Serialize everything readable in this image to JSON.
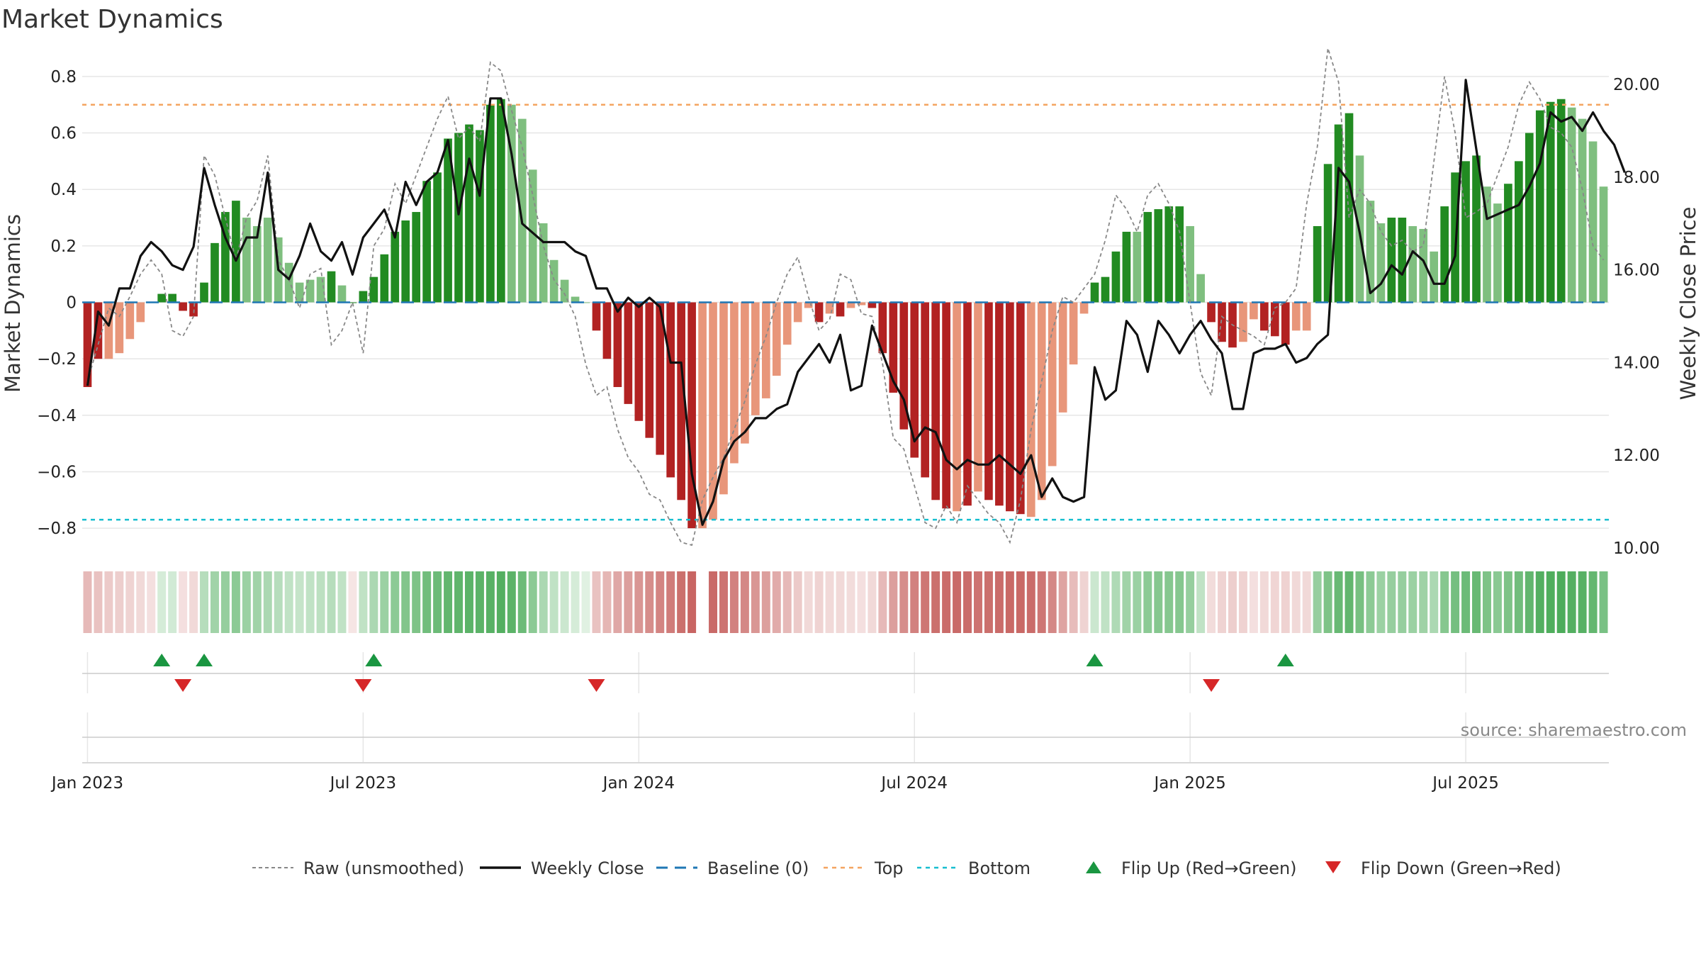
{
  "chart_data": {
    "type": "bar",
    "title": "Market Dynamics",
    "source": "source: sharemaestro.com",
    "ylabel": "Market Dynamics",
    "y2label": "Weekly Close Price",
    "ylim": [
      -0.87,
      0.87
    ],
    "y2lim": [
      10.0,
      20.6
    ],
    "yticks": [
      {
        "v": 0.8,
        "t": "0.8"
      },
      {
        "v": 0.6,
        "t": "0.6"
      },
      {
        "v": 0.4,
        "t": "0.4"
      },
      {
        "v": 0.2,
        "t": "0.2"
      },
      {
        "v": 0,
        "t": "0"
      },
      {
        "v": -0.2,
        "t": "−0.2"
      },
      {
        "v": -0.4,
        "t": "−0.4"
      },
      {
        "v": -0.6,
        "t": "−0.6"
      },
      {
        "v": -0.8,
        "t": "−0.8"
      }
    ],
    "y2ticks": [
      {
        "v": 20,
        "t": "20.00"
      },
      {
        "v": 18,
        "t": "18.00"
      },
      {
        "v": 16,
        "t": "16.00"
      },
      {
        "v": 14,
        "t": "14.00"
      },
      {
        "v": 12,
        "t": "12.00"
      },
      {
        "v": 10,
        "t": "10.00"
      }
    ],
    "xticks": [
      {
        "w": 0.5,
        "t": "Jan 2023"
      },
      {
        "w": 26.5,
        "t": "Jul 2023"
      },
      {
        "w": 52.5,
        "t": "Jan 2024"
      },
      {
        "w": 78.5,
        "t": "Jul 2024"
      },
      {
        "w": 104.5,
        "t": "Jan 2025"
      },
      {
        "w": 130.5,
        "t": "Jul 2025"
      }
    ],
    "top_line": 0.7,
    "bottom_line": -0.77,
    "weeks": 144,
    "bars": [
      -0.3,
      -0.2,
      -0.2,
      -0.18,
      -0.13,
      -0.07,
      0.0,
      0.03,
      0.03,
      -0.03,
      -0.05,
      0.07,
      0.21,
      0.32,
      0.36,
      0.3,
      0.27,
      0.3,
      0.23,
      0.14,
      0.07,
      0.08,
      0.09,
      0.11,
      0.06,
      0.0,
      0.04,
      0.09,
      0.17,
      0.25,
      0.29,
      0.32,
      0.43,
      0.46,
      0.58,
      0.6,
      0.63,
      0.61,
      0.7,
      0.72,
      0.7,
      0.65,
      0.47,
      0.28,
      0.15,
      0.08,
      0.02,
      0.0,
      -0.1,
      -0.2,
      -0.3,
      -0.36,
      -0.42,
      -0.48,
      -0.54,
      -0.62,
      -0.7,
      -0.8,
      -0.8,
      -0.77,
      -0.68,
      -0.57,
      -0.5,
      -0.4,
      -0.34,
      -0.26,
      -0.15,
      -0.07,
      -0.02,
      -0.07,
      -0.04,
      -0.05,
      -0.02,
      -0.01,
      -0.02,
      -0.18,
      -0.32,
      -0.45,
      -0.55,
      -0.62,
      -0.7,
      -0.73,
      -0.74,
      -0.72,
      -0.67,
      -0.7,
      -0.72,
      -0.74,
      -0.75,
      -0.76,
      -0.7,
      -0.58,
      -0.39,
      -0.22,
      -0.04,
      0.07,
      0.09,
      0.18,
      0.25,
      0.25,
      0.32,
      0.33,
      0.34,
      0.34,
      0.27,
      0.1,
      -0.07,
      -0.14,
      -0.16,
      -0.14,
      -0.06,
      -0.1,
      -0.12,
      -0.15,
      -0.1,
      -0.1,
      0.27,
      0.49,
      0.63,
      0.67,
      0.52,
      0.36,
      0.28,
      0.3,
      0.3,
      0.27,
      0.26,
      0.18,
      0.34,
      0.46,
      0.5,
      0.52,
      0.41,
      0.35,
      0.42,
      0.5,
      0.6,
      0.68,
      0.71,
      0.72,
      0.69,
      0.65,
      0.57,
      0.41
    ],
    "bar_colors": {
      "pos_strong": "#228b22",
      "pos_light": "#7fbf7f",
      "neg_strong": "#b22222",
      "neg_light": "#e8967a"
    },
    "bar_shade": [
      "ns",
      "ns",
      "nl",
      "nl",
      "nl",
      "nl",
      "ns",
      "ps",
      "ps",
      "ns",
      "ns",
      "ps",
      "ps",
      "ps",
      "ps",
      "pl",
      "pl",
      "pl",
      "pl",
      "pl",
      "pl",
      "pl",
      "pl",
      "ps",
      "pl",
      "ps",
      "ps",
      "ps",
      "ps",
      "ps",
      "ps",
      "ps",
      "ps",
      "ps",
      "ps",
      "ps",
      "ps",
      "ps",
      "ps",
      "ps",
      "pl",
      "pl",
      "pl",
      "pl",
      "pl",
      "pl",
      "pl",
      "pl",
      "ns",
      "ns",
      "ns",
      "ns",
      "ns",
      "ns",
      "ns",
      "ns",
      "ns",
      "ns",
      "nl",
      "nl",
      "nl",
      "nl",
      "nl",
      "nl",
      "nl",
      "nl",
      "nl",
      "nl",
      "nl",
      "ns",
      "nl",
      "ns",
      "nl",
      "nl",
      "ns",
      "ns",
      "ns",
      "ns",
      "ns",
      "ns",
      "ns",
      "ns",
      "nl",
      "ns",
      "nl",
      "ns",
      "ns",
      "ns",
      "ns",
      "nl",
      "nl",
      "nl",
      "nl",
      "nl",
      "nl",
      "ps",
      "ps",
      "ps",
      "ps",
      "pl",
      "ps",
      "ps",
      "ps",
      "ps",
      "pl",
      "pl",
      "ns",
      "ns",
      "ns",
      "nl",
      "nl",
      "ns",
      "ns",
      "ns",
      "nl",
      "nl",
      "ps",
      "ps",
      "ps",
      "ps",
      "pl",
      "pl",
      "pl",
      "ps",
      "ps",
      "pl",
      "pl",
      "pl",
      "ps",
      "ps",
      "ps",
      "ps",
      "pl",
      "pl",
      "ps",
      "ps",
      "ps",
      "ps",
      "ps",
      "ps",
      "pl",
      "pl",
      "pl",
      "pl"
    ],
    "heat_colors": {
      "green": "#2e9e3e",
      "red": "#c0504d"
    },
    "heat_alpha": [
      0.4,
      0.35,
      0.3,
      0.28,
      0.25,
      0.22,
      0.18,
      0.2,
      0.22,
      0.18,
      0.22,
      0.35,
      0.45,
      0.5,
      0.55,
      0.48,
      0.45,
      0.4,
      0.35,
      0.3,
      0.28,
      0.3,
      0.32,
      0.35,
      0.3,
      0.15,
      0.3,
      0.4,
      0.48,
      0.55,
      0.6,
      0.62,
      0.68,
      0.7,
      0.75,
      0.76,
      0.78,
      0.78,
      0.8,
      0.82,
      0.78,
      0.7,
      0.55,
      0.4,
      0.3,
      0.25,
      0.2,
      0.15,
      0.35,
      0.42,
      0.5,
      0.55,
      0.6,
      0.65,
      0.7,
      0.75,
      0.82,
      0.88,
      0.0,
      0.85,
      0.8,
      0.72,
      0.68,
      0.6,
      0.55,
      0.48,
      0.4,
      0.3,
      0.22,
      0.25,
      0.22,
      0.22,
      0.2,
      0.18,
      0.22,
      0.4,
      0.55,
      0.65,
      0.72,
      0.78,
      0.82,
      0.84,
      0.85,
      0.84,
      0.8,
      0.82,
      0.84,
      0.86,
      0.86,
      0.84,
      0.78,
      0.68,
      0.52,
      0.38,
      0.25,
      0.25,
      0.3,
      0.38,
      0.45,
      0.48,
      0.55,
      0.58,
      0.58,
      0.58,
      0.5,
      0.3,
      0.2,
      0.25,
      0.28,
      0.26,
      0.18,
      0.22,
      0.24,
      0.26,
      0.22,
      0.22,
      0.5,
      0.62,
      0.72,
      0.75,
      0.65,
      0.55,
      0.48,
      0.5,
      0.5,
      0.48,
      0.46,
      0.4,
      0.58,
      0.66,
      0.7,
      0.72,
      0.62,
      0.56,
      0.62,
      0.68,
      0.75,
      0.82,
      0.84,
      0.85,
      0.82,
      0.8,
      0.74,
      0.64
    ],
    "heat_sign": [
      -1,
      -1,
      -1,
      -1,
      -1,
      -1,
      -1,
      1,
      1,
      -1,
      -1,
      1,
      1,
      1,
      1,
      1,
      1,
      1,
      1,
      1,
      1,
      1,
      1,
      1,
      1,
      -1,
      1,
      1,
      1,
      1,
      1,
      1,
      1,
      1,
      1,
      1,
      1,
      1,
      1,
      1,
      1,
      1,
      1,
      1,
      1,
      1,
      1,
      1,
      -1,
      -1,
      -1,
      -1,
      -1,
      -1,
      -1,
      -1,
      -1,
      -1,
      -1,
      -1,
      -1,
      -1,
      -1,
      -1,
      -1,
      -1,
      -1,
      -1,
      -1,
      -1,
      -1,
      -1,
      -1,
      -1,
      -1,
      -1,
      -1,
      -1,
      -1,
      -1,
      -1,
      -1,
      -1,
      -1,
      -1,
      -1,
      -1,
      -1,
      -1,
      -1,
      -1,
      -1,
      -1,
      -1,
      -1,
      1,
      1,
      1,
      1,
      1,
      1,
      1,
      1,
      1,
      1,
      1,
      -1,
      -1,
      -1,
      -1,
      -1,
      -1,
      -1,
      -1,
      -1,
      -1,
      1,
      1,
      1,
      1,
      1,
      1,
      1,
      1,
      1,
      1,
      1,
      1,
      1,
      1,
      1,
      1,
      1,
      1,
      1,
      1,
      1,
      1,
      1,
      1,
      1,
      1,
      1,
      1
    ],
    "raw": [
      -0.28,
      -0.15,
      -0.02,
      -0.05,
      0.02,
      0.1,
      0.15,
      0.1,
      -0.1,
      -0.12,
      -0.05,
      0.52,
      0.45,
      0.3,
      0.15,
      0.3,
      0.36,
      0.52,
      0.15,
      0.08,
      -0.02,
      0.1,
      0.12,
      -0.15,
      -0.1,
      0.0,
      -0.18,
      0.2,
      0.26,
      0.42,
      0.35,
      0.45,
      0.55,
      0.65,
      0.73,
      0.58,
      0.62,
      0.57,
      0.85,
      0.82,
      0.68,
      0.55,
      0.38,
      0.2,
      0.08,
      0.03,
      -0.05,
      -0.22,
      -0.33,
      -0.3,
      -0.45,
      -0.55,
      -0.6,
      -0.68,
      -0.7,
      -0.78,
      -0.85,
      -0.86,
      -0.7,
      -0.62,
      -0.55,
      -0.45,
      -0.35,
      -0.22,
      -0.12,
      0.0,
      0.1,
      0.16,
      0.02,
      -0.1,
      -0.06,
      0.1,
      0.08,
      -0.04,
      -0.05,
      -0.22,
      -0.48,
      -0.52,
      -0.65,
      -0.78,
      -0.8,
      -0.72,
      -0.78,
      -0.65,
      -0.7,
      -0.75,
      -0.78,
      -0.85,
      -0.7,
      -0.45,
      -0.28,
      -0.1,
      0.02,
      0.0,
      0.05,
      0.1,
      0.22,
      0.38,
      0.33,
      0.25,
      0.38,
      0.42,
      0.35,
      0.25,
      0.0,
      -0.25,
      -0.33,
      -0.05,
      -0.08,
      -0.1,
      -0.12,
      -0.15,
      -0.02,
      0.0,
      0.05,
      0.35,
      0.55,
      0.9,
      0.78,
      0.3,
      0.4,
      0.35,
      0.25,
      0.2,
      0.22,
      0.18,
      0.2,
      0.5,
      0.8,
      0.6,
      0.3,
      0.32,
      0.35,
      0.45,
      0.55,
      0.7,
      0.78,
      0.72,
      0.62,
      0.6,
      0.55,
      0.4,
      0.2,
      0.15
    ],
    "close": [
      13.5,
      15.1,
      14.8,
      15.6,
      15.6,
      16.3,
      16.6,
      16.4,
      16.1,
      16.0,
      16.5,
      18.2,
      17.4,
      16.7,
      16.2,
      16.7,
      16.7,
      18.1,
      16.0,
      15.8,
      16.3,
      17.0,
      16.4,
      16.2,
      16.6,
      15.9,
      16.7,
      17.0,
      17.3,
      16.7,
      17.9,
      17.4,
      17.9,
      18.1,
      18.8,
      17.2,
      18.4,
      17.6,
      19.7,
      19.7,
      18.5,
      17.0,
      16.8,
      16.6,
      16.6,
      16.6,
      16.4,
      16.3,
      15.6,
      15.6,
      15.1,
      15.4,
      15.2,
      15.4,
      15.2,
      14.0,
      14.0,
      11.6,
      10.5,
      11.0,
      11.9,
      12.3,
      12.5,
      12.8,
      12.8,
      13.0,
      13.1,
      13.8,
      14.1,
      14.4,
      14.0,
      14.6,
      13.4,
      13.5,
      14.8,
      14.2,
      13.6,
      13.2,
      12.3,
      12.6,
      12.5,
      11.9,
      11.7,
      11.9,
      11.8,
      11.8,
      12.0,
      11.8,
      11.6,
      12.0,
      11.1,
      11.5,
      11.1,
      11.0,
      11.1,
      13.9,
      13.2,
      13.4,
      14.9,
      14.6,
      13.8,
      14.9,
      14.6,
      14.2,
      14.6,
      14.9,
      14.5,
      14.2,
      13.0,
      13.0,
      14.2,
      14.3,
      14.3,
      14.4,
      14.0,
      14.1,
      14.4,
      14.6,
      18.2,
      17.9,
      16.8,
      15.5,
      15.7,
      16.1,
      15.9,
      16.4,
      16.2,
      15.7,
      15.7,
      16.3,
      20.1,
      18.6,
      17.1,
      17.2,
      17.3,
      17.4,
      17.8,
      18.3,
      19.4,
      19.2,
      19.3,
      19.0,
      19.4,
      19.0,
      18.7,
      18.1
    ],
    "flips_up": [
      7,
      11,
      27,
      95,
      113
    ],
    "flips_down": [
      9,
      26,
      48,
      106
    ],
    "legend": [
      {
        "type": "raw",
        "label": "Raw (unsmoothed)"
      },
      {
        "type": "close",
        "label": "Weekly Close"
      },
      {
        "type": "baseline",
        "label": "Baseline (0)"
      },
      {
        "type": "top",
        "label": "Top"
      },
      {
        "type": "bottom",
        "label": "Bottom"
      },
      {
        "type": "up",
        "label": "Flip Up (Red→Green)"
      },
      {
        "type": "down",
        "label": "Flip Down (Green→Red)"
      }
    ],
    "colors": {
      "raw": "#888888",
      "close": "#111111",
      "baseline": "#1f77b4",
      "top": "#f4a460",
      "bottom": "#17becf",
      "up": "#1a9641",
      "down": "#d62728",
      "grid": "#e6e6e6"
    }
  }
}
